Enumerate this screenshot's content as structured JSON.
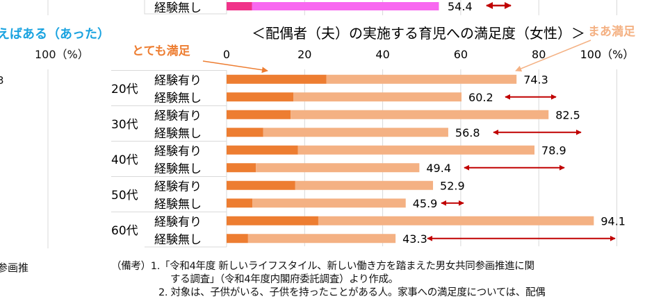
{
  "above_chart": {
    "row_label": "経験無し",
    "value": 54.4,
    "value_label": "54.4",
    "colors": {
      "dark": "#f0338a",
      "light": "#f868f0"
    }
  },
  "left_chart_fragment": {
    "legend_text": "えばある（あった）",
    "axis_end_label": "100（%）",
    "side_text_1": "3",
    "side_text_2": "参画推"
  },
  "chart_data": {
    "type": "bar",
    "stacked": true,
    "orientation": "horizontal",
    "title": "＜配偶者（夫）の実施する育児への満足度（女性）＞",
    "xlim": [
      0,
      100
    ],
    "x_ticks": [
      "0",
      "20",
      "40",
      "60",
      "80",
      "100（%）"
    ],
    "grid": true,
    "series": [
      {
        "name": "とても満足",
        "color": "#ed7d31"
      },
      {
        "name": "まあ満足",
        "color": "#f4b183"
      }
    ],
    "groups": [
      {
        "age": "20代",
        "rows": [
          {
            "label": "経験有り",
            "very": 25.6,
            "total": 74.3,
            "total_label": "74.3"
          },
          {
            "label": "経験無し",
            "very": 17.1,
            "total": 60.2,
            "total_label": "60.2",
            "gap_arrow": true
          }
        ]
      },
      {
        "age": "30代",
        "rows": [
          {
            "label": "経験有り",
            "very": 16.4,
            "total": 82.5,
            "total_label": "82.5"
          },
          {
            "label": "経験無し",
            "very": 9.4,
            "total": 56.8,
            "total_label": "56.8",
            "gap_arrow": true
          }
        ]
      },
      {
        "age": "40代",
        "rows": [
          {
            "label": "経験有り",
            "very": 18.3,
            "total": 78.9,
            "total_label": "78.9"
          },
          {
            "label": "経験無し",
            "very": 7.5,
            "total": 49.4,
            "total_label": "49.4",
            "gap_arrow": true
          }
        ]
      },
      {
        "age": "50代",
        "rows": [
          {
            "label": "経験有り",
            "very": 17.6,
            "total": 52.9,
            "total_label": "52.9"
          },
          {
            "label": "経験無し",
            "very": 6.6,
            "total": 45.9,
            "total_label": "45.9",
            "gap_arrow": true
          }
        ]
      },
      {
        "age": "60代",
        "rows": [
          {
            "label": "経験有り",
            "very": 23.5,
            "total": 94.1,
            "total_label": "94.1"
          },
          {
            "label": "経験無し",
            "very": 5.5,
            "total": 43.3,
            "total_label": "43.3",
            "gap_arrow": true
          }
        ]
      }
    ],
    "annotations": [
      "とても満足",
      "まあ満足"
    ],
    "arrow_color": "#c00000"
  },
  "footnote": {
    "line1": "（備考）1.「令和4年度 新しいライフスタイル、新しい働き方を踏まえた男女共同参画推進に関",
    "line2": "する調査」（令和4年度内閣府委託調査）より作成。",
    "line3": "2. 対象は、子供がいる、子供を持ったことがある人。家事への満足度については、配偶"
  }
}
